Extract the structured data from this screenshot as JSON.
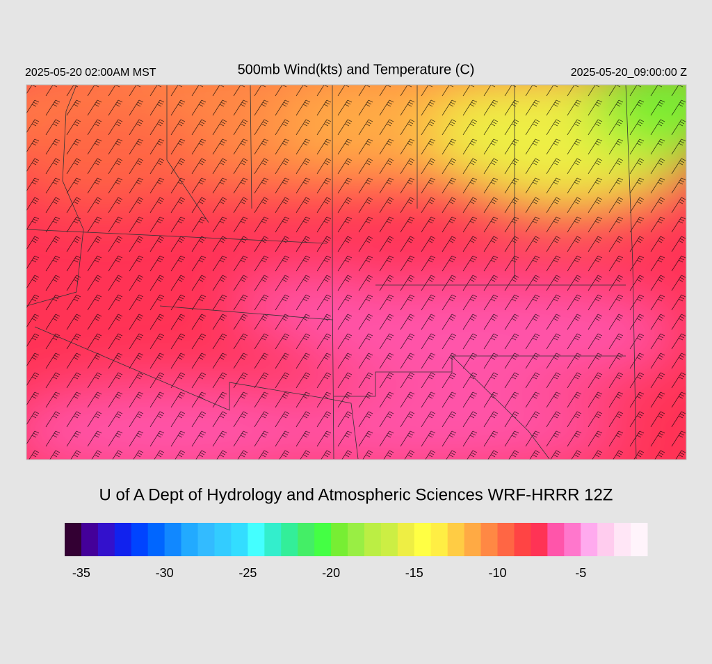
{
  "header": {
    "left": "2025-05-20 02:00AM MST",
    "title": "500mb Wind(kts) and Temperature (C)",
    "right": "2025-05-20_09:00:00 Z"
  },
  "footer": "U of A Dept of Hydrology and Atmospheric Sciences WRF-HRRR 12Z",
  "colorbar": {
    "lim": [
      -36,
      -1
    ],
    "ticks": [
      -35,
      -30,
      -25,
      -20,
      -15,
      -10,
      -5
    ],
    "colors": [
      "#330033",
      "#440099",
      "#3311cc",
      "#1122ee",
      "#0044ff",
      "#0066ff",
      "#1188ff",
      "#22aaff",
      "#33bbff",
      "#33ccff",
      "#33ddff",
      "#44ffff",
      "#33eecc",
      "#33ee99",
      "#44ee66",
      "#44ff44",
      "#77ee33",
      "#99ee44",
      "#bbee44",
      "#ccee44",
      "#eeee44",
      "#ffff44",
      "#ffee44",
      "#ffcc44",
      "#ffaa44",
      "#ff8844",
      "#ff6644",
      "#ff4444",
      "#ff3355",
      "#ff55aa",
      "#ff77cc",
      "#ffaaee",
      "#ffccee",
      "#ffe6f6",
      "#fff4fb"
    ]
  }
}
